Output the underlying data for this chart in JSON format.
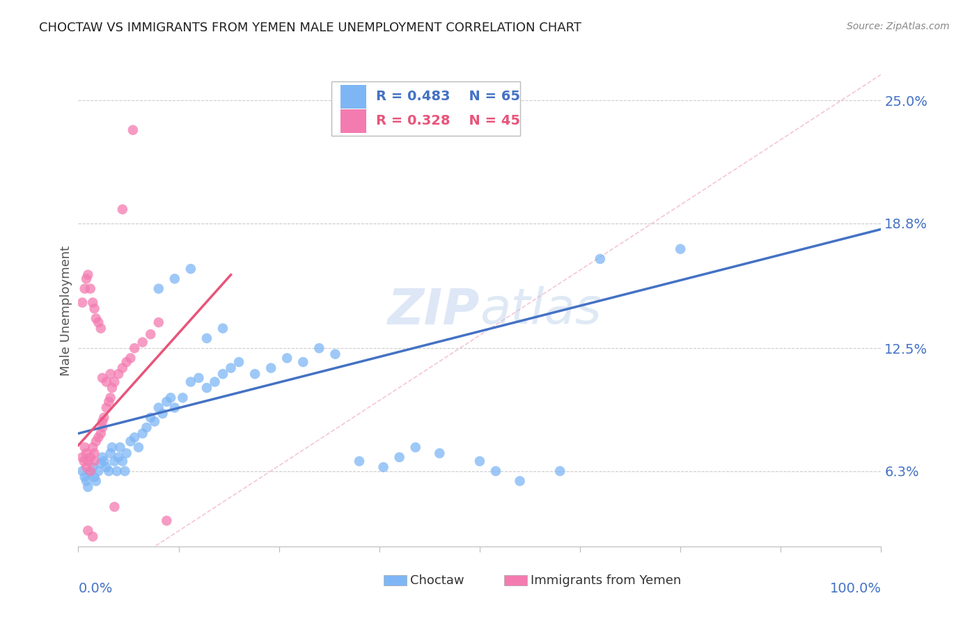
{
  "title": "CHOCTAW VS IMMIGRANTS FROM YEMEN MALE UNEMPLOYMENT CORRELATION CHART",
  "source": "Source: ZipAtlas.com",
  "ylabel": "Male Unemployment",
  "ytick_labels": [
    "6.3%",
    "12.5%",
    "18.8%",
    "25.0%"
  ],
  "ytick_values": [
    0.063,
    0.125,
    0.188,
    0.25
  ],
  "xmin": 0.0,
  "xmax": 1.0,
  "ymin": 0.025,
  "ymax": 0.263,
  "legend_r_blue": "R = 0.483",
  "legend_n_blue": "N = 65",
  "legend_r_pink": "R = 0.328",
  "legend_n_pink": "N = 45",
  "color_blue": "#7EB6F5",
  "color_pink": "#F47BB0",
  "color_line_blue": "#4472C4",
  "color_line_pink": "#E8547A",
  "color_diag": "#F5B8C8",
  "watermark_zip": "ZIP",
  "watermark_atlas": "atlas",
  "blue_line_start_x": 0.0,
  "blue_line_start_y": 0.082,
  "blue_line_end_x": 1.0,
  "blue_line_end_y": 0.185,
  "pink_line_start_x": 0.0,
  "pink_line_start_y": 0.076,
  "pink_line_end_x": 0.19,
  "pink_line_end_y": 0.162,
  "choctaw_x": [
    0.005,
    0.008,
    0.01,
    0.012,
    0.015,
    0.018,
    0.02,
    0.022,
    0.025,
    0.028,
    0.03,
    0.032,
    0.035,
    0.038,
    0.04,
    0.042,
    0.045,
    0.048,
    0.05,
    0.052,
    0.055,
    0.058,
    0.06,
    0.065,
    0.07,
    0.075,
    0.08,
    0.085,
    0.09,
    0.095,
    0.1,
    0.105,
    0.11,
    0.115,
    0.12,
    0.13,
    0.14,
    0.15,
    0.16,
    0.17,
    0.18,
    0.19,
    0.2,
    0.22,
    0.24,
    0.26,
    0.28,
    0.3,
    0.32,
    0.35,
    0.38,
    0.4,
    0.42,
    0.45,
    0.5,
    0.52,
    0.55,
    0.6,
    0.65,
    0.75,
    0.1,
    0.12,
    0.14,
    0.16,
    0.18
  ],
  "choctaw_y": [
    0.063,
    0.06,
    0.058,
    0.055,
    0.062,
    0.065,
    0.06,
    0.058,
    0.063,
    0.067,
    0.07,
    0.068,
    0.065,
    0.063,
    0.072,
    0.075,
    0.068,
    0.063,
    0.07,
    0.075,
    0.068,
    0.063,
    0.072,
    0.078,
    0.08,
    0.075,
    0.082,
    0.085,
    0.09,
    0.088,
    0.095,
    0.092,
    0.098,
    0.1,
    0.095,
    0.1,
    0.108,
    0.11,
    0.105,
    0.108,
    0.112,
    0.115,
    0.118,
    0.112,
    0.115,
    0.12,
    0.118,
    0.125,
    0.122,
    0.068,
    0.065,
    0.07,
    0.075,
    0.072,
    0.068,
    0.063,
    0.058,
    0.063,
    0.17,
    0.175,
    0.155,
    0.16,
    0.165,
    0.13,
    0.135
  ],
  "yemen_x": [
    0.005,
    0.007,
    0.008,
    0.01,
    0.01,
    0.012,
    0.015,
    0.015,
    0.018,
    0.02,
    0.02,
    0.022,
    0.025,
    0.028,
    0.03,
    0.03,
    0.032,
    0.035,
    0.038,
    0.04,
    0.042,
    0.045,
    0.05,
    0.055,
    0.06,
    0.065,
    0.07,
    0.08,
    0.09,
    0.1,
    0.005,
    0.008,
    0.01,
    0.012,
    0.015,
    0.018,
    0.02,
    0.022,
    0.025,
    0.028,
    0.03,
    0.035,
    0.04,
    0.045,
    0.11
  ],
  "yemen_y": [
    0.07,
    0.068,
    0.075,
    0.065,
    0.072,
    0.068,
    0.063,
    0.07,
    0.075,
    0.072,
    0.068,
    0.078,
    0.08,
    0.082,
    0.085,
    0.088,
    0.09,
    0.095,
    0.098,
    0.1,
    0.105,
    0.108,
    0.112,
    0.115,
    0.118,
    0.12,
    0.125,
    0.128,
    0.132,
    0.138,
    0.148,
    0.155,
    0.16,
    0.162,
    0.155,
    0.148,
    0.145,
    0.14,
    0.138,
    0.135,
    0.11,
    0.108,
    0.112,
    0.045,
    0.038
  ]
}
